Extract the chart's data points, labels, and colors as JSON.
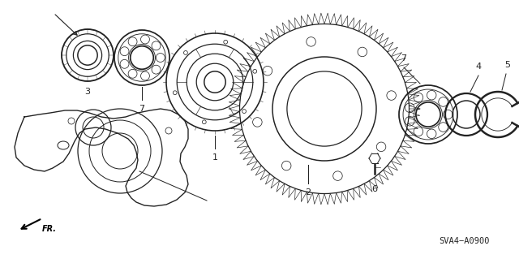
{
  "bg_color": "#ffffff",
  "line_color": "#222222",
  "diagram_code": "SVA4−A0900",
  "figsize": [
    6.4,
    3.19
  ],
  "dpi": 100
}
